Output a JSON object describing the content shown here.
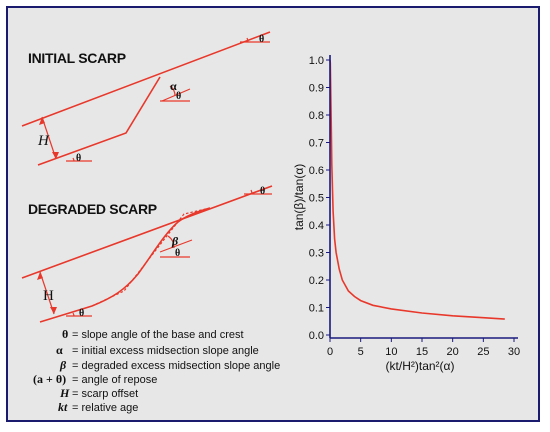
{
  "panels": {
    "initial": {
      "title": "INITIAL SCARP",
      "h_label": "H",
      "theta": "θ",
      "alpha": "α"
    },
    "degraded": {
      "title": "DEGRADED SCARP",
      "h_label": "H",
      "theta": "θ",
      "beta": "β"
    }
  },
  "legend": [
    {
      "symbol": "θ",
      "text": "= slope angle of the base and crest"
    },
    {
      "symbol": "α",
      "text": "= initial excess midsection slope angle"
    },
    {
      "symbol": "β",
      "text": "= degraded excess midsection slope angle"
    },
    {
      "symbol": "(a + θ)",
      "text": "= angle of repose"
    },
    {
      "symbol": "H",
      "text": "= scarp offset"
    },
    {
      "symbol": "kt",
      "text": "= relative age"
    }
  ],
  "colors": {
    "curve": "#e8382b",
    "axis": "#1a1a7e",
    "background": "#e7e7e7",
    "border": "#1a1a6e"
  },
  "chart_data": {
    "type": "line",
    "ylabel": "tan(β)/tan(α)",
    "xlabel": "(kt/H²)tan²(α)",
    "xlim": [
      0,
      30
    ],
    "ylim": [
      0,
      1.0
    ],
    "xticks": [
      "0",
      "5",
      "10",
      "15",
      "20",
      "25",
      "30"
    ],
    "yticks": [
      "0.0",
      "0.1",
      "0.2",
      "0.3",
      "0.4",
      "0.5",
      "0.6",
      "0.7",
      "0.8",
      "0.9",
      "1.0"
    ],
    "series": [
      {
        "x": [
          0,
          0.05,
          0.1,
          0.2,
          0.3,
          0.5,
          0.75,
          1,
          1.5,
          2,
          3,
          4,
          5,
          7,
          10,
          15,
          20,
          25,
          28.5
        ],
        "y": [
          1.0,
          0.99,
          0.92,
          0.78,
          0.62,
          0.45,
          0.35,
          0.3,
          0.24,
          0.2,
          0.16,
          0.14,
          0.125,
          0.108,
          0.095,
          0.08,
          0.07,
          0.063,
          0.058
        ]
      }
    ]
  }
}
